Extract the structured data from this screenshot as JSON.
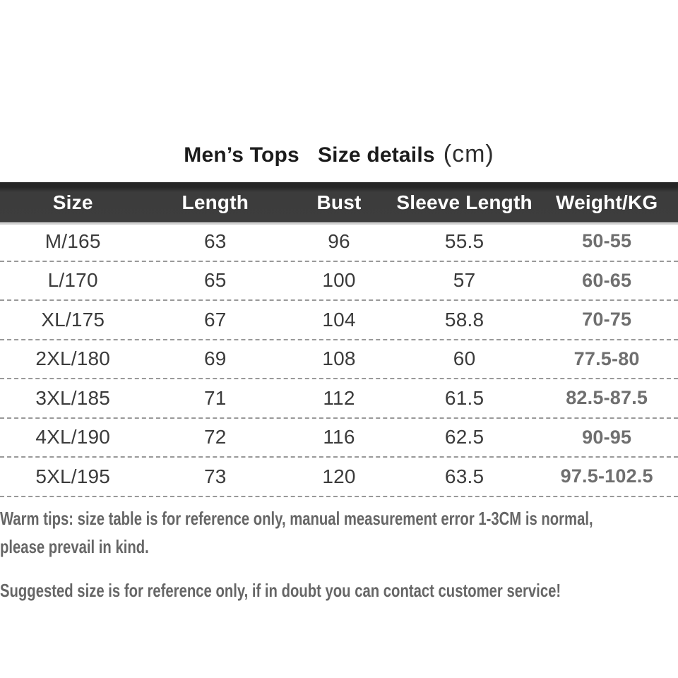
{
  "title": {
    "product": "Men’s Tops",
    "label": "Size details",
    "unit": "(cm)"
  },
  "table": {
    "columns": [
      "Size",
      "Length",
      "Bust",
      "Sleeve Length",
      "Weight/KG"
    ],
    "rows": [
      [
        "M/165",
        "63",
        "96",
        "55.5",
        "50-55"
      ],
      [
        "L/170",
        "65",
        "100",
        "57",
        "60-65"
      ],
      [
        "XL/175",
        "67",
        "104",
        "58.8",
        "70-75"
      ],
      [
        "2XL/180",
        "69",
        "108",
        "60",
        "77.5-80"
      ],
      [
        "3XL/185",
        "71",
        "112",
        "61.5",
        "82.5-87.5"
      ],
      [
        "4XL/190",
        "72",
        "116",
        "62.5",
        "90-95"
      ],
      [
        "5XL/195",
        "73",
        "120",
        "63.5",
        "97.5-102.5"
      ]
    ]
  },
  "notes": {
    "warm_line1": "Warm tips: size table is for reference only, manual measurement error 1-3CM is normal,",
    "warm_line2": "please prevail in kind.",
    "suggestion": "Suggested size is for reference only, if in doubt you can contact customer service!"
  },
  "colors": {
    "header_bg": "#3d3d3d",
    "header_text": "#ffffff",
    "row_text": "#3b3b3b",
    "weight_column_text": "#6f6f6f",
    "divider": "#999999",
    "note_text": "#666666",
    "title_text": "#1b1b1b"
  }
}
